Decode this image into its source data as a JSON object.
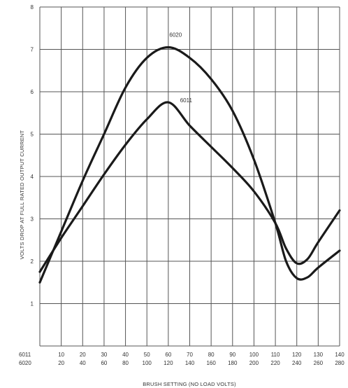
{
  "chart_data": {
    "type": "line",
    "title": "",
    "xlabel": "BRUSH SETTING (NO LOAD VOLTS)",
    "ylabel": "VOLTS DROP AT FULL RATED OUTPUT CURRENT",
    "xlim": [
      0,
      14
    ],
    "ylim": [
      0,
      8
    ],
    "grid": true,
    "yticks": [
      "",
      "1",
      "2",
      "3",
      "4",
      "5",
      "6",
      "7",
      "8"
    ],
    "x_axis_rows": [
      {
        "name": "6011",
        "ticks": [
          "6011",
          "10",
          "20",
          "30",
          "40",
          "50",
          "60",
          "70",
          "80",
          "90",
          "100",
          "110",
          "120",
          "130",
          "140"
        ]
      },
      {
        "name": "6020",
        "ticks": [
          "6020",
          "20",
          "40",
          "60",
          "80",
          "100",
          "120",
          "140",
          "160",
          "180",
          "200",
          "220",
          "240",
          "260",
          "280"
        ]
      }
    ],
    "series": [
      {
        "name": "6020",
        "points": [
          [
            0,
            1.5
          ],
          [
            1,
            2.7
          ],
          [
            2,
            3.9
          ],
          [
            3,
            5.0
          ],
          [
            4,
            6.1
          ],
          [
            5,
            6.8
          ],
          [
            6,
            7.05
          ],
          [
            7,
            6.8
          ],
          [
            8,
            6.3
          ],
          [
            9,
            5.55
          ],
          [
            10,
            4.4
          ],
          [
            11,
            2.9
          ],
          [
            11.5,
            2.0
          ],
          [
            12,
            1.6
          ],
          [
            12.5,
            1.62
          ],
          [
            13,
            1.85
          ],
          [
            14,
            2.25
          ]
        ],
        "label_at": [
          6.05,
          7.3
        ]
      },
      {
        "name": "6011",
        "points": [
          [
            0,
            1.75
          ],
          [
            1,
            2.55
          ],
          [
            2,
            3.3
          ],
          [
            3,
            4.05
          ],
          [
            4,
            4.75
          ],
          [
            5,
            5.35
          ],
          [
            6,
            5.75
          ],
          [
            7,
            5.2
          ],
          [
            8,
            4.7
          ],
          [
            9,
            4.2
          ],
          [
            10,
            3.65
          ],
          [
            11,
            2.9
          ],
          [
            11.5,
            2.3
          ],
          [
            12,
            1.95
          ],
          [
            12.5,
            2.05
          ],
          [
            13,
            2.45
          ],
          [
            14,
            3.2
          ]
        ],
        "label_at": [
          6.55,
          5.75
        ]
      }
    ]
  }
}
